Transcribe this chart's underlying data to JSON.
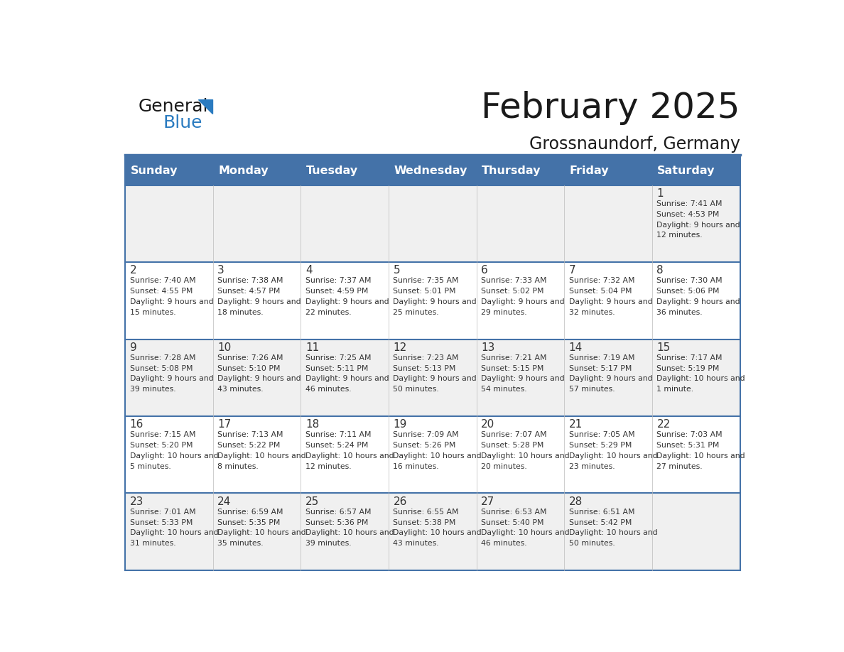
{
  "title": "February 2025",
  "subtitle": "Grossnaundorf, Germany",
  "days_of_week": [
    "Sunday",
    "Monday",
    "Tuesday",
    "Wednesday",
    "Thursday",
    "Friday",
    "Saturday"
  ],
  "header_bg": "#4472A8",
  "header_text_color": "#FFFFFF",
  "row1_bg": "#F0F0F0",
  "row2_bg": "#FFFFFF",
  "cell_border_color": "#4472A8",
  "day_number_color": "#333333",
  "info_text_color": "#333333",
  "logo_general_color": "#1a1a1a",
  "logo_blue_color": "#2a7bc0",
  "calendar_data": [
    {
      "day": 1,
      "col": 6,
      "row": 0,
      "sunrise": "7:41 AM",
      "sunset": "4:53 PM",
      "daylight": "9 hours and 12 minutes"
    },
    {
      "day": 2,
      "col": 0,
      "row": 1,
      "sunrise": "7:40 AM",
      "sunset": "4:55 PM",
      "daylight": "9 hours and 15 minutes"
    },
    {
      "day": 3,
      "col": 1,
      "row": 1,
      "sunrise": "7:38 AM",
      "sunset": "4:57 PM",
      "daylight": "9 hours and 18 minutes"
    },
    {
      "day": 4,
      "col": 2,
      "row": 1,
      "sunrise": "7:37 AM",
      "sunset": "4:59 PM",
      "daylight": "9 hours and 22 minutes"
    },
    {
      "day": 5,
      "col": 3,
      "row": 1,
      "sunrise": "7:35 AM",
      "sunset": "5:01 PM",
      "daylight": "9 hours and 25 minutes"
    },
    {
      "day": 6,
      "col": 4,
      "row": 1,
      "sunrise": "7:33 AM",
      "sunset": "5:02 PM",
      "daylight": "9 hours and 29 minutes"
    },
    {
      "day": 7,
      "col": 5,
      "row": 1,
      "sunrise": "7:32 AM",
      "sunset": "5:04 PM",
      "daylight": "9 hours and 32 minutes"
    },
    {
      "day": 8,
      "col": 6,
      "row": 1,
      "sunrise": "7:30 AM",
      "sunset": "5:06 PM",
      "daylight": "9 hours and 36 minutes"
    },
    {
      "day": 9,
      "col": 0,
      "row": 2,
      "sunrise": "7:28 AM",
      "sunset": "5:08 PM",
      "daylight": "9 hours and 39 minutes"
    },
    {
      "day": 10,
      "col": 1,
      "row": 2,
      "sunrise": "7:26 AM",
      "sunset": "5:10 PM",
      "daylight": "9 hours and 43 minutes"
    },
    {
      "day": 11,
      "col": 2,
      "row": 2,
      "sunrise": "7:25 AM",
      "sunset": "5:11 PM",
      "daylight": "9 hours and 46 minutes"
    },
    {
      "day": 12,
      "col": 3,
      "row": 2,
      "sunrise": "7:23 AM",
      "sunset": "5:13 PM",
      "daylight": "9 hours and 50 minutes"
    },
    {
      "day": 13,
      "col": 4,
      "row": 2,
      "sunrise": "7:21 AM",
      "sunset": "5:15 PM",
      "daylight": "9 hours and 54 minutes"
    },
    {
      "day": 14,
      "col": 5,
      "row": 2,
      "sunrise": "7:19 AM",
      "sunset": "5:17 PM",
      "daylight": "9 hours and 57 minutes"
    },
    {
      "day": 15,
      "col": 6,
      "row": 2,
      "sunrise": "7:17 AM",
      "sunset": "5:19 PM",
      "daylight": "10 hours and 1 minute"
    },
    {
      "day": 16,
      "col": 0,
      "row": 3,
      "sunrise": "7:15 AM",
      "sunset": "5:20 PM",
      "daylight": "10 hours and 5 minutes"
    },
    {
      "day": 17,
      "col": 1,
      "row": 3,
      "sunrise": "7:13 AM",
      "sunset": "5:22 PM",
      "daylight": "10 hours and 8 minutes"
    },
    {
      "day": 18,
      "col": 2,
      "row": 3,
      "sunrise": "7:11 AM",
      "sunset": "5:24 PM",
      "daylight": "10 hours and 12 minutes"
    },
    {
      "day": 19,
      "col": 3,
      "row": 3,
      "sunrise": "7:09 AM",
      "sunset": "5:26 PM",
      "daylight": "10 hours and 16 minutes"
    },
    {
      "day": 20,
      "col": 4,
      "row": 3,
      "sunrise": "7:07 AM",
      "sunset": "5:28 PM",
      "daylight": "10 hours and 20 minutes"
    },
    {
      "day": 21,
      "col": 5,
      "row": 3,
      "sunrise": "7:05 AM",
      "sunset": "5:29 PM",
      "daylight": "10 hours and 23 minutes"
    },
    {
      "day": 22,
      "col": 6,
      "row": 3,
      "sunrise": "7:03 AM",
      "sunset": "5:31 PM",
      "daylight": "10 hours and 27 minutes"
    },
    {
      "day": 23,
      "col": 0,
      "row": 4,
      "sunrise": "7:01 AM",
      "sunset": "5:33 PM",
      "daylight": "10 hours and 31 minutes"
    },
    {
      "day": 24,
      "col": 1,
      "row": 4,
      "sunrise": "6:59 AM",
      "sunset": "5:35 PM",
      "daylight": "10 hours and 35 minutes"
    },
    {
      "day": 25,
      "col": 2,
      "row": 4,
      "sunrise": "6:57 AM",
      "sunset": "5:36 PM",
      "daylight": "10 hours and 39 minutes"
    },
    {
      "day": 26,
      "col": 3,
      "row": 4,
      "sunrise": "6:55 AM",
      "sunset": "5:38 PM",
      "daylight": "10 hours and 43 minutes"
    },
    {
      "day": 27,
      "col": 4,
      "row": 4,
      "sunrise": "6:53 AM",
      "sunset": "5:40 PM",
      "daylight": "10 hours and 46 minutes"
    },
    {
      "day": 28,
      "col": 5,
      "row": 4,
      "sunrise": "6:51 AM",
      "sunset": "5:42 PM",
      "daylight": "10 hours and 50 minutes"
    }
  ]
}
